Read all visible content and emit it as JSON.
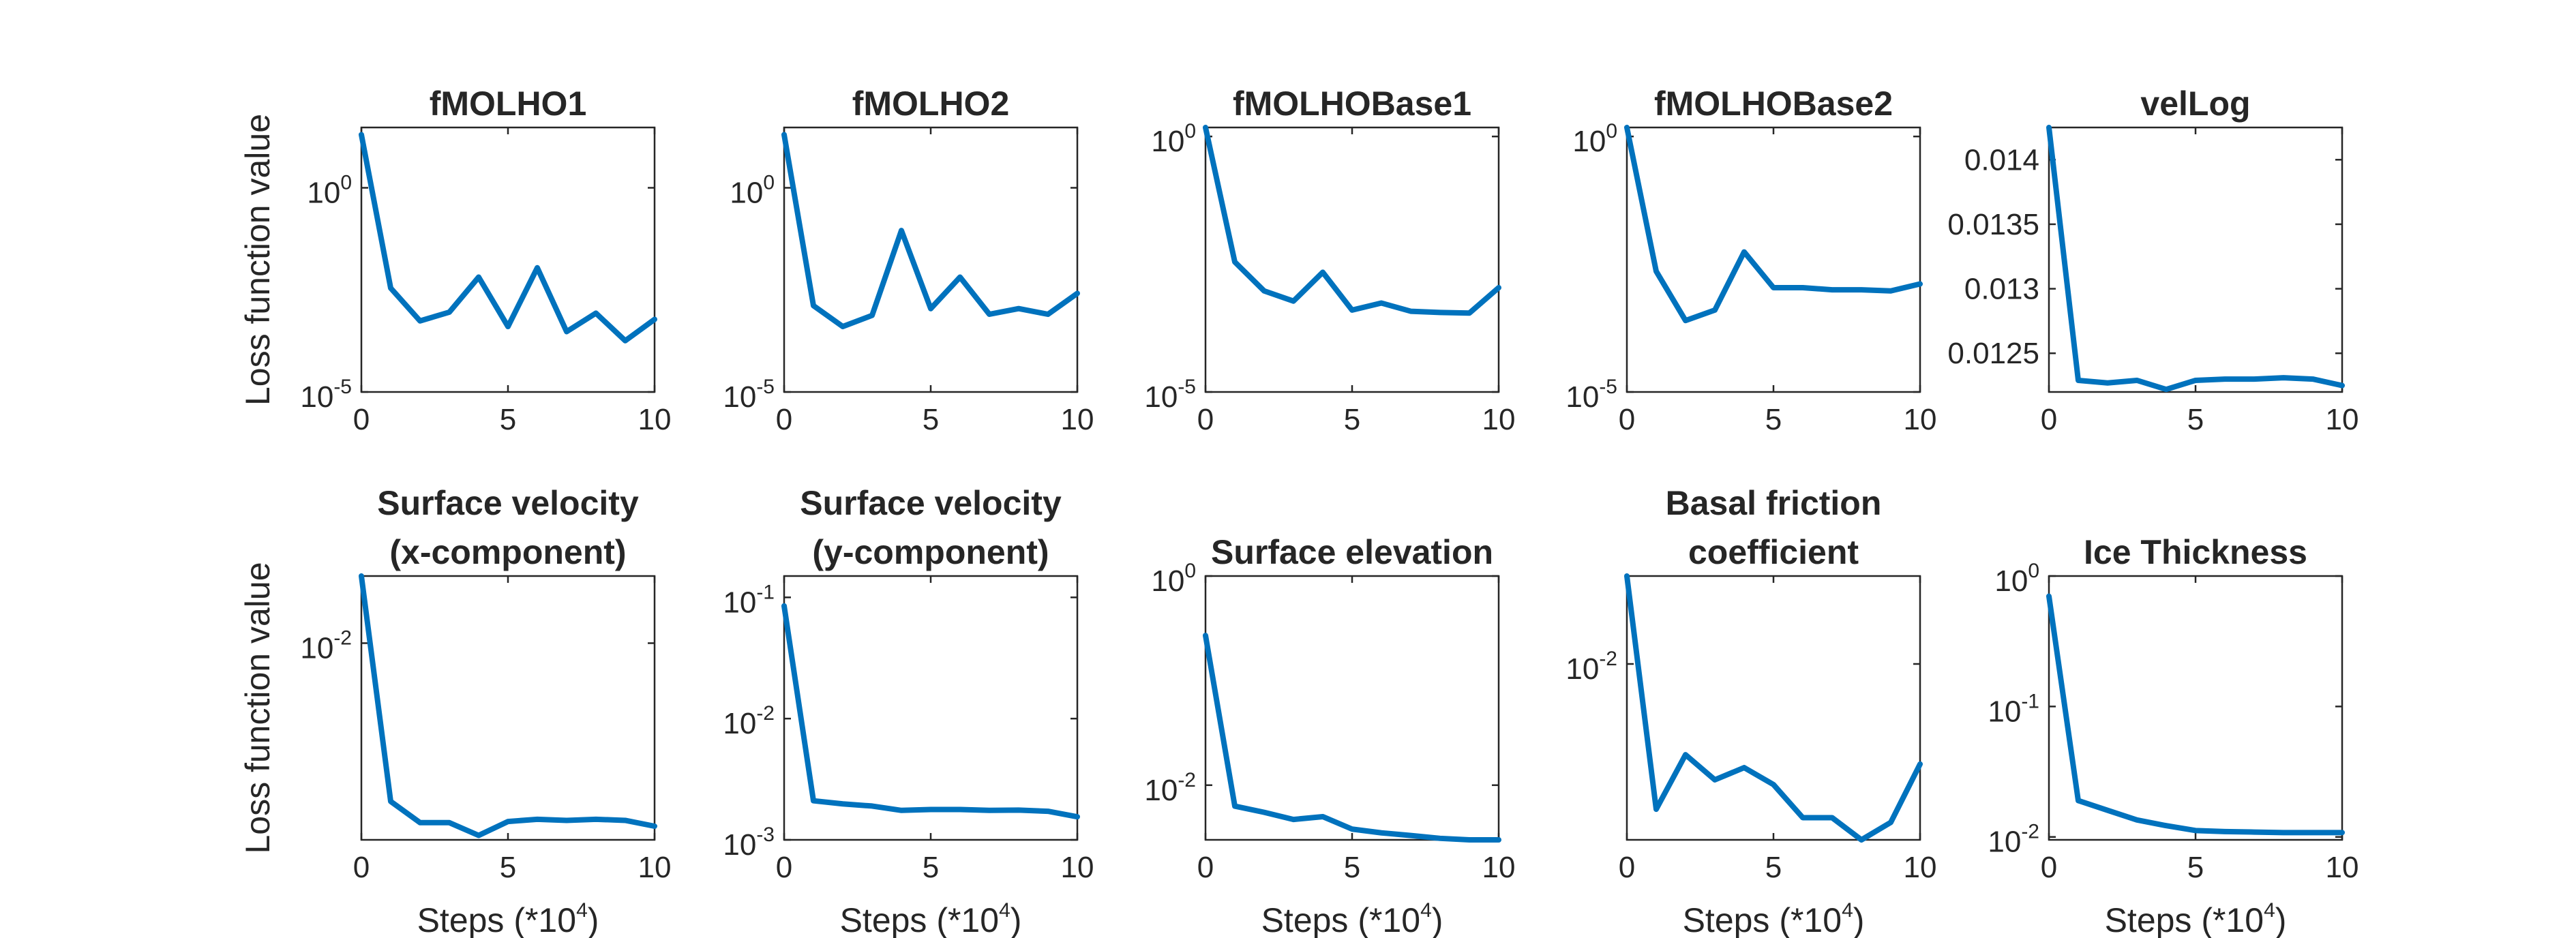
{
  "colors": {
    "series": "#0072BD",
    "axes": "#262626"
  },
  "chart_data": [
    {
      "type": "line",
      "title_lines": [
        "fMOLHO1"
      ],
      "ylabel": "Loss function value",
      "xlabel": "",
      "yscale": "log",
      "xlim": [
        0,
        10
      ],
      "ylim": [
        1e-05,
        30
      ],
      "xticks": [
        "0",
        "5",
        "10"
      ],
      "yticks": [
        {
          "value": 1,
          "base": "10",
          "exp": "0"
        },
        {
          "value": 1e-05,
          "base": "10",
          "exp": "-5"
        }
      ],
      "series": [
        {
          "x": [
            0,
            1,
            2,
            3,
            4,
            5,
            6,
            7,
            8,
            9,
            10
          ],
          "y": [
            20,
            0.0035,
            0.00055,
            0.0009,
            0.0065,
            0.0004,
            0.011,
            0.0003,
            0.00085,
            0.00018,
            0.0006
          ]
        }
      ]
    },
    {
      "type": "line",
      "title_lines": [
        "fMOLHO2"
      ],
      "ylabel": "",
      "xlabel": "",
      "yscale": "log",
      "xlim": [
        0,
        10
      ],
      "ylim": [
        1e-05,
        30
      ],
      "xticks": [
        "0",
        "5",
        "10"
      ],
      "yticks": [
        {
          "value": 1,
          "base": "10",
          "exp": "0"
        },
        {
          "value": 1e-05,
          "base": "10",
          "exp": "-5"
        }
      ],
      "series": [
        {
          "x": [
            0,
            1,
            2,
            3,
            4,
            5,
            6,
            7,
            8,
            9,
            10
          ],
          "y": [
            20,
            0.0013,
            0.0004,
            0.00075,
            0.09,
            0.0011,
            0.0065,
            0.0008,
            0.0011,
            0.0008,
            0.0026
          ]
        }
      ]
    },
    {
      "type": "line",
      "title_lines": [
        "fMOLHOBase1"
      ],
      "ylabel": "",
      "xlabel": "",
      "yscale": "log",
      "xlim": [
        0,
        10
      ],
      "ylim": [
        1e-05,
        1.5
      ],
      "xticks": [
        "0",
        "5",
        "10"
      ],
      "yticks": [
        {
          "value": 1,
          "base": "10",
          "exp": "0"
        },
        {
          "value": 1e-05,
          "base": "10",
          "exp": "-5"
        }
      ],
      "series": [
        {
          "x": [
            0,
            1,
            2,
            3,
            4,
            5,
            6,
            7,
            8,
            9,
            10
          ],
          "y": [
            1.5,
            0.0035,
            0.00095,
            0.0006,
            0.0022,
            0.0004,
            0.00055,
            0.00038,
            0.00036,
            0.00035,
            0.0011
          ]
        }
      ]
    },
    {
      "type": "line",
      "title_lines": [
        "fMOLHOBase2"
      ],
      "ylabel": "",
      "xlabel": "",
      "yscale": "log",
      "xlim": [
        0,
        10
      ],
      "ylim": [
        1e-05,
        1.5
      ],
      "xticks": [
        "0",
        "5",
        "10"
      ],
      "yticks": [
        {
          "value": 1,
          "base": "10",
          "exp": "0"
        },
        {
          "value": 1e-05,
          "base": "10",
          "exp": "-5"
        }
      ],
      "series": [
        {
          "x": [
            0,
            1,
            2,
            3,
            4,
            5,
            6,
            7,
            8,
            9,
            10
          ],
          "y": [
            1.5,
            0.0023,
            0.00025,
            0.0004,
            0.0055,
            0.0011,
            0.0011,
            0.001,
            0.001,
            0.00095,
            0.0013
          ]
        }
      ]
    },
    {
      "type": "line",
      "title_lines": [
        "velLog"
      ],
      "ylabel": "",
      "xlabel": "",
      "yscale": "linear",
      "xlim": [
        0,
        10
      ],
      "ylim": [
        0.0122,
        0.01425
      ],
      "xticks": [
        "0",
        "5",
        "10"
      ],
      "yticks": [
        {
          "value": 0.014,
          "label": "0.014"
        },
        {
          "value": 0.0135,
          "label": "0.0135"
        },
        {
          "value": 0.013,
          "label": "0.013"
        },
        {
          "value": 0.0125,
          "label": "0.0125"
        }
      ],
      "series": [
        {
          "x": [
            0,
            1,
            2,
            3,
            4,
            5,
            6,
            7,
            8,
            9,
            10
          ],
          "y": [
            0.01425,
            0.01229,
            0.01227,
            0.01229,
            0.01222,
            0.01229,
            0.0123,
            0.0123,
            0.01231,
            0.0123,
            0.01225
          ]
        }
      ]
    },
    {
      "type": "line",
      "title_lines": [
        "Surface velocity",
        "(x-component)"
      ],
      "ylabel": "Loss function value",
      "xlabel": "Steps (*10",
      "xlabel_sup": "4",
      "xlabel_end": ")",
      "yscale": "log",
      "xlim": [
        0,
        10
      ],
      "ylim": [
        0.0004,
        0.03
      ],
      "xticks": [
        "0",
        "5",
        "10"
      ],
      "yticks": [
        {
          "value": 0.01,
          "base": "10",
          "exp": "-2"
        }
      ],
      "series": [
        {
          "x": [
            0,
            1,
            2,
            3,
            4,
            5,
            6,
            7,
            8,
            9,
            10
          ],
          "y": [
            0.03,
            0.00075,
            0.00053,
            0.00053,
            0.00043,
            0.00054,
            0.00056,
            0.00055,
            0.00056,
            0.00055,
            0.0005
          ]
        }
      ]
    },
    {
      "type": "line",
      "title_lines": [
        "Surface velocity",
        "(y-component)"
      ],
      "ylabel": "",
      "xlabel": "Steps (*10",
      "xlabel_sup": "4",
      "xlabel_end": ")",
      "yscale": "log",
      "xlim": [
        0,
        10
      ],
      "ylim": [
        0.001,
        0.15
      ],
      "xticks": [
        "0",
        "5",
        "10"
      ],
      "yticks": [
        {
          "value": 0.1,
          "base": "10",
          "exp": "-1"
        },
        {
          "value": 0.01,
          "base": "10",
          "exp": "-2"
        },
        {
          "value": 0.001,
          "base": "10",
          "exp": "-3"
        }
      ],
      "series": [
        {
          "x": [
            0,
            1,
            2,
            3,
            4,
            5,
            6,
            7,
            8,
            9,
            10
          ],
          "y": [
            0.085,
            0.0021,
            0.00198,
            0.0019,
            0.00175,
            0.00178,
            0.00178,
            0.00175,
            0.00176,
            0.00172,
            0.00155
          ]
        }
      ]
    },
    {
      "type": "line",
      "title_lines": [
        "Surface elevation"
      ],
      "ylabel": "",
      "xlabel": "Steps (*10",
      "xlabel_sup": "4",
      "xlabel_end": ")",
      "yscale": "log",
      "xlim": [
        0,
        10
      ],
      "ylim": [
        0.003,
        1
      ],
      "xticks": [
        "0",
        "5",
        "10"
      ],
      "yticks": [
        {
          "value": 1,
          "base": "10",
          "exp": "0"
        },
        {
          "value": 0.01,
          "base": "10",
          "exp": "-2"
        }
      ],
      "series": [
        {
          "x": [
            0,
            1,
            2,
            3,
            4,
            5,
            6,
            7,
            8,
            9,
            10
          ],
          "y": [
            0.27,
            0.0063,
            0.0055,
            0.0047,
            0.005,
            0.0038,
            0.0035,
            0.0033,
            0.0031,
            0.003,
            0.003
          ]
        }
      ]
    },
    {
      "type": "line",
      "title_lines": [
        "Basal friction",
        "coefficient"
      ],
      "ylabel": "",
      "xlabel": "Steps (*10",
      "xlabel_sup": "4",
      "xlabel_end": ")",
      "yscale": "log",
      "xlim": [
        0,
        10
      ],
      "ylim": [
        0.0004,
        0.05
      ],
      "xticks": [
        "0",
        "5",
        "10"
      ],
      "yticks": [
        {
          "value": 0.01,
          "base": "10",
          "exp": "-2"
        }
      ],
      "series": [
        {
          "x": [
            0,
            1,
            2,
            3,
            4,
            5,
            6,
            7,
            8,
            9,
            10
          ],
          "y": [
            0.05,
            0.0007,
            0.0019,
            0.0012,
            0.0015,
            0.0011,
            0.0006,
            0.0006,
            0.00039,
            0.00055,
            0.0016
          ]
        }
      ]
    },
    {
      "type": "line",
      "title_lines": [
        "Ice Thickness"
      ],
      "ylabel": "",
      "xlabel": "Steps (*10",
      "xlabel_sup": "4",
      "xlabel_end": ")",
      "yscale": "log",
      "xlim": [
        0,
        10
      ],
      "ylim": [
        0.0095,
        1
      ],
      "xticks": [
        "0",
        "5",
        "10"
      ],
      "yticks": [
        {
          "value": 1,
          "base": "10",
          "exp": "0"
        },
        {
          "value": 0.1,
          "base": "10",
          "exp": "-1"
        },
        {
          "value": 0.01,
          "base": "10",
          "exp": "-2"
        }
      ],
      "series": [
        {
          "x": [
            0,
            1,
            2,
            3,
            4,
            5,
            6,
            7,
            8,
            9,
            10
          ],
          "y": [
            0.7,
            0.019,
            0.016,
            0.0135,
            0.0122,
            0.0112,
            0.011,
            0.0109,
            0.0108,
            0.0108,
            0.0108
          ]
        }
      ]
    }
  ]
}
